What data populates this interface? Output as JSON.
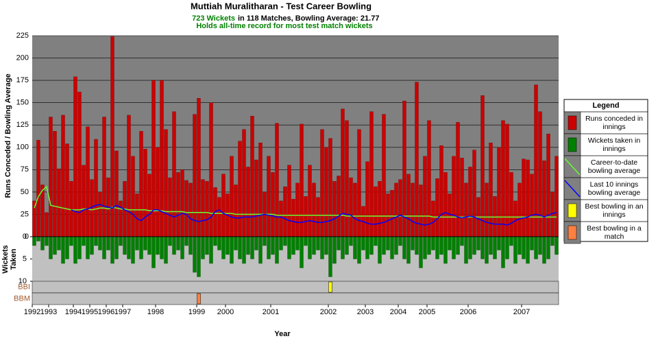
{
  "chart_data": {
    "type": "bar",
    "title": "Muttiah Muralitharan - Test Career Bowling",
    "subtitle": [
      "723 Wickets",
      "in 118 Matches, Bowling Average: 21.77"
    ],
    "note": "Holds all-time record for most test match wickets",
    "ylabel": "Runs Conceded / Bowling Average",
    "xlabel": "Year",
    "legend_title": "Legend",
    "xlim": [
      0,
      128
    ],
    "xticks": [
      {
        "value": 0,
        "label": "1992"
      },
      {
        "value": 4,
        "label": "1993"
      },
      {
        "value": 10,
        "label": "1994"
      },
      {
        "value": 14,
        "label": "1995"
      },
      {
        "value": 18,
        "label": "1996"
      },
      {
        "value": 22,
        "label": "1997"
      },
      {
        "value": 30,
        "label": "1998"
      },
      {
        "value": 40,
        "label": "1999"
      },
      {
        "value": 47,
        "label": "2000"
      },
      {
        "value": 58,
        "label": "2001"
      },
      {
        "value": 72,
        "label": "2002"
      },
      {
        "value": 81,
        "label": "2003"
      },
      {
        "value": 89,
        "label": "2004"
      },
      {
        "value": 96,
        "label": "2005"
      },
      {
        "value": 106,
        "label": "2006"
      },
      {
        "value": 119,
        "label": "2007"
      }
    ],
    "ylim": [
      0,
      225
    ],
    "yticks": [
      0,
      25,
      50,
      75,
      100,
      125,
      150,
      175,
      200,
      225
    ],
    "grid": true,
    "wickets_axis": {
      "label": [
        "Wickets",
        "Taken"
      ],
      "lim": [
        0,
        10
      ],
      "ticks": [
        0,
        5,
        10
      ]
    },
    "series": [
      {
        "name": "Runs conceded in innings",
        "color": "#cc0000",
        "kind": "bar",
        "values": [
          40,
          108,
          58,
          27,
          134,
          118,
          76,
          136,
          104,
          62,
          179,
          162,
          80,
          123,
          64,
          109,
          50,
          134,
          66,
          224,
          96,
          40,
          62,
          136,
          90,
          48,
          118,
          98,
          70,
          175,
          100,
          175,
          120,
          66,
          140,
          72,
          75,
          63,
          60,
          137,
          155,
          64,
          62,
          150,
          55,
          44,
          70,
          48,
          90,
          58,
          107,
          120,
          78,
          135,
          86,
          105,
          50,
          90,
          72,
          127,
          40,
          56,
          80,
          42,
          60,
          126,
          45,
          80,
          60,
          44,
          120,
          100,
          110,
          62,
          68,
          143,
          130,
          66,
          60,
          120,
          34,
          84,
          140,
          56,
          62,
          137,
          48,
          52,
          60,
          64,
          152,
          70,
          60,
          173,
          58,
          90,
          130,
          40,
          65,
          102,
          72,
          48,
          90,
          128,
          88,
          60,
          78,
          97,
          44,
          158,
          60,
          105,
          45,
          100,
          130,
          126,
          72,
          40,
          60,
          87,
          86,
          70,
          170,
          140,
          85,
          115,
          50,
          90
        ]
      },
      {
        "name": "Wickets taken in innings",
        "color": "#008000",
        "kind": "bar",
        "axis": "wickets",
        "values": [
          2,
          1,
          3,
          2,
          5,
          4,
          3,
          6,
          5,
          2,
          6,
          5,
          2,
          5,
          4,
          2,
          3,
          5,
          3,
          6,
          5,
          2,
          4,
          5,
          6,
          3,
          5,
          3,
          4,
          7,
          4,
          5,
          6,
          2,
          4,
          3,
          5,
          2,
          4,
          8,
          9,
          5,
          4,
          6,
          2,
          3,
          5,
          4,
          6,
          3,
          5,
          6,
          4,
          5,
          3,
          6,
          2,
          5,
          4,
          6,
          3,
          2,
          5,
          4,
          3,
          7,
          2,
          5,
          4,
          3,
          5,
          4,
          9,
          6,
          3,
          5,
          4,
          2,
          5,
          6,
          3,
          5,
          4,
          2,
          6,
          4,
          3,
          5,
          4,
          2,
          5,
          6,
          3,
          4,
          7,
          5,
          4,
          3,
          5,
          4,
          6,
          3,
          5,
          4,
          2,
          6,
          5,
          4,
          3,
          5,
          6,
          4,
          5,
          3,
          7,
          5,
          2,
          6,
          4,
          5,
          6,
          3,
          5,
          4,
          6,
          5,
          2,
          4
        ]
      },
      {
        "name": "Career-to-date bowling average",
        "color": "#66ff33",
        "kind": "line",
        "values": [
          32,
          45,
          52,
          56,
          35,
          34,
          33,
          32,
          31,
          30,
          30,
          30,
          31,
          31,
          30,
          31,
          32,
          32,
          31,
          33,
          32,
          31,
          31,
          30,
          30,
          30,
          30,
          30,
          29,
          29,
          29,
          29,
          28,
          28,
          28,
          28,
          28,
          27,
          27,
          27,
          27,
          27,
          27,
          26,
          26,
          26,
          26,
          26,
          26,
          25,
          25,
          25,
          25,
          25,
          25,
          25,
          25,
          25,
          25,
          24,
          24,
          24,
          24,
          24,
          24,
          24,
          24,
          24,
          24,
          24,
          24,
          24,
          24,
          24,
          24,
          24,
          23,
          23,
          23,
          23,
          23,
          23,
          23,
          23,
          23,
          23,
          23,
          23,
          23,
          23,
          23,
          23,
          23,
          23,
          23,
          23,
          23,
          22,
          22,
          22,
          22,
          22,
          22,
          22,
          22,
          22,
          22,
          22,
          22,
          22,
          22,
          22,
          22,
          22,
          22,
          22,
          22,
          22,
          22,
          22,
          22,
          22,
          22,
          22,
          22,
          22,
          22,
          22
        ]
      },
      {
        "name": "Last 10 innings bowling average",
        "color": "#0000ff",
        "kind": "line",
        "values": [
          null,
          null,
          null,
          null,
          null,
          null,
          null,
          null,
          null,
          30,
          28,
          27,
          30,
          31,
          33,
          35,
          36,
          34,
          33,
          32,
          35,
          33,
          30,
          28,
          25,
          20,
          18,
          22,
          25,
          30,
          30,
          28,
          26,
          24,
          22,
          24,
          26,
          25,
          20,
          18,
          17,
          18,
          19,
          22,
          28,
          30,
          26,
          24,
          22,
          21,
          21,
          22,
          22,
          22,
          23,
          24,
          25,
          24,
          23,
          22,
          22,
          20,
          18,
          17,
          16,
          16,
          17,
          18,
          17,
          16,
          16,
          17,
          18,
          20,
          23,
          26,
          25,
          24,
          20,
          18,
          17,
          15,
          14,
          14,
          15,
          16,
          18,
          20,
          22,
          24,
          22,
          20,
          17,
          15,
          14,
          13,
          14,
          16,
          20,
          25,
          27,
          25,
          24,
          22,
          21,
          22,
          23,
          22,
          20,
          18,
          16,
          15,
          14,
          14,
          14,
          13,
          15,
          18,
          20,
          21,
          22,
          24,
          25,
          24,
          22,
          24,
          26,
          27
        ]
      }
    ],
    "markers": [
      {
        "label": "BBI",
        "name": "Best bowling in an innings",
        "color": "#ffff00",
        "x": 72
      },
      {
        "label": "BBM",
        "name": "Best bowling in a match",
        "color": "#ff8040",
        "x": 40
      }
    ]
  }
}
